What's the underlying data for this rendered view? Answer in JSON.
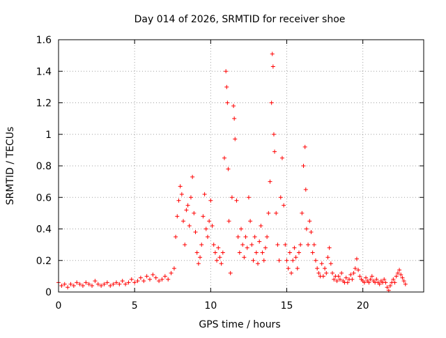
{
  "chart_data": {
    "type": "scatter",
    "title": "Day 014 of 2026, SRMTID for receiver shoe",
    "xlabel": "GPS time / hours",
    "ylabel": "SRMTID / TECUs",
    "xlim": [
      0,
      24
    ],
    "ylim": [
      0,
      1.6
    ],
    "xticks": [
      0,
      5,
      10,
      15,
      20
    ],
    "yticks": [
      0,
      0.2,
      0.4,
      0.6,
      0.8,
      1,
      1.2,
      1.4,
      1.6
    ],
    "grid": true,
    "marker": "+",
    "series": [
      {
        "name": "SRMTID",
        "color": "#ff0000",
        "points": [
          [
            0.0,
            0.06
          ],
          [
            0.2,
            0.04
          ],
          [
            0.4,
            0.05
          ],
          [
            0.6,
            0.03
          ],
          [
            0.8,
            0.05
          ],
          [
            1.0,
            0.04
          ],
          [
            1.2,
            0.06
          ],
          [
            1.4,
            0.05
          ],
          [
            1.6,
            0.04
          ],
          [
            1.8,
            0.06
          ],
          [
            2.0,
            0.05
          ],
          [
            2.2,
            0.04
          ],
          [
            2.4,
            0.07
          ],
          [
            2.6,
            0.05
          ],
          [
            2.8,
            0.04
          ],
          [
            3.0,
            0.05
          ],
          [
            3.2,
            0.06
          ],
          [
            3.4,
            0.04
          ],
          [
            3.6,
            0.05
          ],
          [
            3.8,
            0.06
          ],
          [
            4.0,
            0.05
          ],
          [
            4.2,
            0.07
          ],
          [
            4.4,
            0.05
          ],
          [
            4.6,
            0.06
          ],
          [
            4.8,
            0.08
          ],
          [
            5.0,
            0.06
          ],
          [
            5.2,
            0.07
          ],
          [
            5.4,
            0.09
          ],
          [
            5.6,
            0.07
          ],
          [
            5.8,
            0.1
          ],
          [
            6.0,
            0.08
          ],
          [
            6.2,
            0.11
          ],
          [
            6.4,
            0.09
          ],
          [
            6.6,
            0.07
          ],
          [
            6.8,
            0.08
          ],
          [
            7.0,
            0.1
          ],
          [
            7.2,
            0.08
          ],
          [
            7.4,
            0.12
          ],
          [
            7.6,
            0.15
          ],
          [
            7.7,
            0.35
          ],
          [
            7.8,
            0.48
          ],
          [
            7.9,
            0.58
          ],
          [
            8.0,
            0.67
          ],
          [
            8.1,
            0.62
          ],
          [
            8.2,
            0.45
          ],
          [
            8.3,
            0.3
          ],
          [
            8.4,
            0.52
          ],
          [
            8.5,
            0.55
          ],
          [
            8.6,
            0.42
          ],
          [
            8.7,
            0.6
          ],
          [
            8.8,
            0.73
          ],
          [
            8.9,
            0.5
          ],
          [
            9.0,
            0.38
          ],
          [
            9.1,
            0.25
          ],
          [
            9.2,
            0.18
          ],
          [
            9.3,
            0.22
          ],
          [
            9.4,
            0.3
          ],
          [
            9.5,
            0.48
          ],
          [
            9.6,
            0.62
          ],
          [
            9.7,
            0.4
          ],
          [
            9.8,
            0.35
          ],
          [
            9.9,
            0.45
          ],
          [
            10.0,
            0.58
          ],
          [
            10.1,
            0.42
          ],
          [
            10.2,
            0.3
          ],
          [
            10.3,
            0.25
          ],
          [
            10.4,
            0.2
          ],
          [
            10.5,
            0.28
          ],
          [
            10.6,
            0.22
          ],
          [
            10.7,
            0.18
          ],
          [
            10.8,
            0.25
          ],
          [
            10.9,
            0.85
          ],
          [
            11.0,
            1.4
          ],
          [
            11.05,
            1.3
          ],
          [
            11.1,
            1.2
          ],
          [
            11.15,
            0.78
          ],
          [
            11.2,
            0.45
          ],
          [
            11.3,
            0.12
          ],
          [
            11.4,
            0.6
          ],
          [
            11.5,
            1.18
          ],
          [
            11.55,
            1.1
          ],
          [
            11.6,
            0.97
          ],
          [
            11.7,
            0.58
          ],
          [
            11.8,
            0.35
          ],
          [
            11.9,
            0.25
          ],
          [
            12.0,
            0.4
          ],
          [
            12.1,
            0.3
          ],
          [
            12.2,
            0.22
          ],
          [
            12.3,
            0.35
          ],
          [
            12.4,
            0.28
          ],
          [
            12.5,
            0.6
          ],
          [
            12.6,
            0.45
          ],
          [
            12.7,
            0.3
          ],
          [
            12.8,
            0.2
          ],
          [
            12.9,
            0.35
          ],
          [
            13.0,
            0.25
          ],
          [
            13.1,
            0.18
          ],
          [
            13.2,
            0.32
          ],
          [
            13.3,
            0.42
          ],
          [
            13.4,
            0.25
          ],
          [
            13.5,
            0.2
          ],
          [
            13.6,
            0.28
          ],
          [
            13.7,
            0.35
          ],
          [
            13.8,
            0.5
          ],
          [
            13.9,
            0.7
          ],
          [
            14.0,
            1.2
          ],
          [
            14.05,
            1.51
          ],
          [
            14.1,
            1.43
          ],
          [
            14.15,
            1.0
          ],
          [
            14.2,
            0.89
          ],
          [
            14.3,
            0.5
          ],
          [
            14.4,
            0.3
          ],
          [
            14.5,
            0.2
          ],
          [
            14.6,
            0.6
          ],
          [
            14.7,
            0.85
          ],
          [
            14.8,
            0.55
          ],
          [
            14.9,
            0.3
          ],
          [
            15.0,
            0.2
          ],
          [
            15.1,
            0.15
          ],
          [
            15.2,
            0.25
          ],
          [
            15.3,
            0.12
          ],
          [
            15.4,
            0.2
          ],
          [
            15.5,
            0.28
          ],
          [
            15.6,
            0.22
          ],
          [
            15.7,
            0.15
          ],
          [
            15.8,
            0.25
          ],
          [
            15.9,
            0.3
          ],
          [
            16.0,
            0.5
          ],
          [
            16.1,
            0.8
          ],
          [
            16.2,
            0.92
          ],
          [
            16.25,
            0.65
          ],
          [
            16.3,
            0.4
          ],
          [
            16.4,
            0.3
          ],
          [
            16.5,
            0.45
          ],
          [
            16.6,
            0.38
          ],
          [
            16.7,
            0.25
          ],
          [
            16.8,
            0.3
          ],
          [
            16.9,
            0.2
          ],
          [
            17.0,
            0.15
          ],
          [
            17.1,
            0.12
          ],
          [
            17.2,
            0.1
          ],
          [
            17.3,
            0.18
          ],
          [
            17.4,
            0.1
          ],
          [
            17.5,
            0.15
          ],
          [
            17.6,
            0.12
          ],
          [
            17.7,
            0.22
          ],
          [
            17.8,
            0.28
          ],
          [
            17.9,
            0.18
          ],
          [
            18.0,
            0.12
          ],
          [
            18.1,
            0.08
          ],
          [
            18.2,
            0.1
          ],
          [
            18.3,
            0.07
          ],
          [
            18.4,
            0.1
          ],
          [
            18.5,
            0.08
          ],
          [
            18.6,
            0.12
          ],
          [
            18.7,
            0.07
          ],
          [
            18.8,
            0.06
          ],
          [
            18.9,
            0.09
          ],
          [
            19.0,
            0.06
          ],
          [
            19.1,
            0.08
          ],
          [
            19.2,
            0.11
          ],
          [
            19.3,
            0.08
          ],
          [
            19.4,
            0.12
          ],
          [
            19.5,
            0.15
          ],
          [
            19.6,
            0.21
          ],
          [
            19.7,
            0.14
          ],
          [
            19.8,
            0.1
          ],
          [
            19.9,
            0.08
          ],
          [
            20.0,
            0.07
          ],
          [
            20.1,
            0.06
          ],
          [
            20.2,
            0.09
          ],
          [
            20.3,
            0.07
          ],
          [
            20.4,
            0.06
          ],
          [
            20.5,
            0.08
          ],
          [
            20.6,
            0.1
          ],
          [
            20.7,
            0.07
          ],
          [
            20.8,
            0.06
          ],
          [
            20.9,
            0.08
          ],
          [
            21.0,
            0.06
          ],
          [
            21.1,
            0.05
          ],
          [
            21.2,
            0.07
          ],
          [
            21.3,
            0.06
          ],
          [
            21.4,
            0.08
          ],
          [
            21.5,
            0.06
          ],
          [
            21.6,
            0.03
          ],
          [
            21.7,
            0.01
          ],
          [
            21.8,
            0.04
          ],
          [
            21.9,
            0.06
          ],
          [
            22.0,
            0.08
          ],
          [
            22.1,
            0.06
          ],
          [
            22.2,
            0.1
          ],
          [
            22.3,
            0.12
          ],
          [
            22.4,
            0.14
          ],
          [
            22.5,
            0.11
          ],
          [
            22.6,
            0.09
          ],
          [
            22.7,
            0.07
          ],
          [
            22.8,
            0.05
          ]
        ]
      }
    ]
  }
}
